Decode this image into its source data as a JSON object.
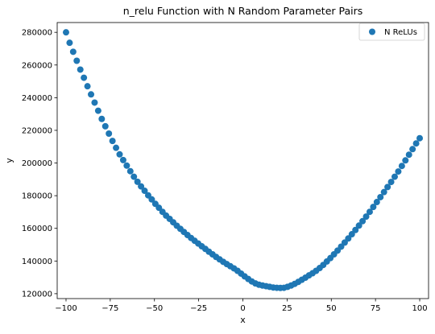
{
  "chart_data": {
    "type": "scatter",
    "title": "n_relu Function with N Random Parameter Pairs",
    "xlabel": "x",
    "ylabel": "y",
    "xlim": [
      -105,
      105
    ],
    "ylim": [
      117000,
      286000
    ],
    "xticks": [
      -100,
      -75,
      -50,
      -25,
      0,
      25,
      50,
      75,
      100
    ],
    "yticks": [
      120000,
      140000,
      160000,
      180000,
      200000,
      220000,
      240000,
      260000,
      280000
    ],
    "grid": false,
    "legend_position": "top-right",
    "series": [
      {
        "name": "N ReLUs",
        "color": "#1f77b4",
        "x": [
          -100,
          -97.98,
          -95.96,
          -93.94,
          -91.92,
          -89.9,
          -87.88,
          -85.86,
          -83.84,
          -81.82,
          -79.8,
          -77.78,
          -75.76,
          -73.74,
          -71.72,
          -69.7,
          -67.68,
          -65.66,
          -63.64,
          -61.62,
          -59.6,
          -57.58,
          -55.56,
          -53.54,
          -51.52,
          -49.49,
          -47.47,
          -45.45,
          -43.43,
          -41.41,
          -39.39,
          -37.37,
          -35.35,
          -33.33,
          -31.31,
          -29.29,
          -27.27,
          -25.25,
          -23.23,
          -21.21,
          -19.19,
          -17.17,
          -15.15,
          -13.13,
          -11.11,
          -9.09,
          -7.07,
          -5.05,
          -3.03,
          -1.01,
          1.01,
          3.03,
          5.05,
          7.07,
          9.09,
          11.11,
          13.13,
          15.15,
          17.17,
          19.19,
          21.21,
          23.23,
          25.25,
          27.27,
          29.29,
          31.31,
          33.33,
          35.35,
          37.37,
          39.39,
          41.41,
          43.43,
          45.45,
          47.47,
          49.49,
          51.52,
          53.54,
          55.56,
          57.58,
          59.6,
          61.62,
          63.64,
          65.66,
          67.68,
          69.7,
          71.72,
          73.74,
          75.76,
          77.78,
          79.8,
          81.82,
          83.84,
          85.86,
          87.88,
          89.9,
          91.92,
          93.94,
          95.96,
          97.98,
          100
        ],
        "y": [
          280000,
          273600,
          268100,
          262600,
          257200,
          252200,
          247000,
          242000,
          237000,
          232000,
          227000,
          222500,
          218000,
          213500,
          209300,
          205300,
          201800,
          198400,
          195000,
          191600,
          188500,
          185700,
          183000,
          180200,
          177700,
          175000,
          172600,
          170100,
          167800,
          165800,
          163700,
          161600,
          159700,
          157800,
          155900,
          154100,
          152400,
          150700,
          149000,
          147400,
          145700,
          144100,
          142500,
          141000,
          139500,
          138100,
          136800,
          135500,
          134000,
          132300,
          130600,
          129000,
          127500,
          126300,
          125500,
          125000,
          124600,
          124200,
          123800,
          123600,
          123500,
          123600,
          124200,
          125000,
          126000,
          127200,
          128500,
          129800,
          131200,
          132500,
          134000,
          135700,
          137600,
          139700,
          141800,
          144100,
          146400,
          148800,
          151300,
          153800,
          156400,
          159000,
          161700,
          164400,
          167200,
          170100,
          173100,
          176100,
          179100,
          182200,
          185300,
          188400,
          191600,
          194800,
          198200,
          201600,
          205100,
          208500,
          212000,
          215200
        ]
      }
    ]
  }
}
